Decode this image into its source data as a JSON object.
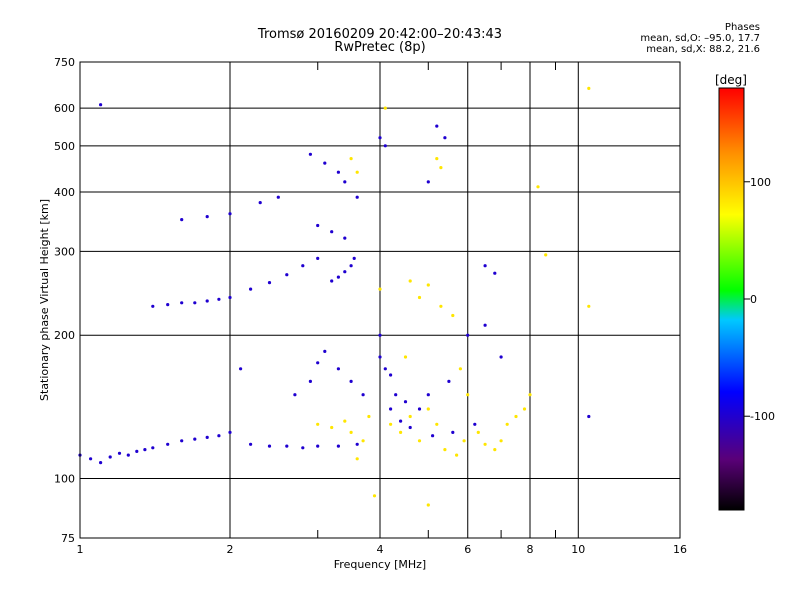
{
  "header": {
    "title_line1": "Tromsø 20160209 20:42:00–20:43:43",
    "title_line2": "RwPretec (8p)"
  },
  "stats": {
    "heading": "Phases",
    "line1": "mean, sd,O: –95.0, 17.7",
    "line2": "mean, sd,X:  88.2, 21.6"
  },
  "chart_data": {
    "type": "scatter",
    "xlabel": "Frequency [MHz]",
    "ylabel": "Stationary phase Virtual Height [km]",
    "x_scale": "log",
    "y_scale": "log",
    "xlim": [
      1,
      16
    ],
    "ylim": [
      75,
      750
    ],
    "x_ticks": [
      1,
      2,
      4,
      6,
      8,
      10,
      16
    ],
    "x_minor_ticks": [
      3,
      5,
      7,
      9
    ],
    "y_ticks": [
      75,
      100,
      200,
      300,
      400,
      500,
      600,
      750
    ],
    "grid": true,
    "colorbar": {
      "label": "[deg]",
      "range": [
        -180,
        180
      ],
      "ticks": [
        100,
        0,
        -100
      ],
      "colormap": [
        "#000000",
        "#5a0078",
        "#0000ff",
        "#00c8ff",
        "#00ff00",
        "#ffff00",
        "#ff8c00",
        "#ff0000"
      ]
    },
    "series": [
      {
        "name": "O",
        "phase_mean_deg": -95,
        "points": [
          [
            1.0,
            112
          ],
          [
            1.05,
            110
          ],
          [
            1.1,
            108
          ],
          [
            1.15,
            111
          ],
          [
            1.2,
            113
          ],
          [
            1.25,
            112
          ],
          [
            1.3,
            114
          ],
          [
            1.35,
            115
          ],
          [
            1.4,
            116
          ],
          [
            1.5,
            118
          ],
          [
            1.6,
            120
          ],
          [
            1.7,
            121
          ],
          [
            1.8,
            122
          ],
          [
            1.9,
            123
          ],
          [
            2.0,
            125
          ],
          [
            2.2,
            118
          ],
          [
            2.4,
            117
          ],
          [
            2.6,
            117
          ],
          [
            2.8,
            116
          ],
          [
            3.0,
            117
          ],
          [
            3.3,
            117
          ],
          [
            3.6,
            118
          ],
          [
            1.4,
            230
          ],
          [
            1.5,
            232
          ],
          [
            1.6,
            234
          ],
          [
            1.7,
            234
          ],
          [
            1.8,
            236
          ],
          [
            1.9,
            238
          ],
          [
            2.0,
            240
          ],
          [
            2.2,
            250
          ],
          [
            2.4,
            258
          ],
          [
            2.6,
            268
          ],
          [
            2.8,
            280
          ],
          [
            3.0,
            290
          ],
          [
            1.6,
            350
          ],
          [
            1.8,
            355
          ],
          [
            2.0,
            360
          ],
          [
            2.3,
            380
          ],
          [
            2.5,
            390
          ],
          [
            3.2,
            260
          ],
          [
            3.3,
            265
          ],
          [
            3.4,
            272
          ],
          [
            3.5,
            280
          ],
          [
            3.55,
            290
          ],
          [
            2.9,
            480
          ],
          [
            3.1,
            460
          ],
          [
            3.3,
            440
          ],
          [
            3.4,
            420
          ],
          [
            3.6,
            390
          ],
          [
            3.0,
            340
          ],
          [
            3.2,
            330
          ],
          [
            3.4,
            320
          ],
          [
            2.7,
            150
          ],
          [
            2.9,
            160
          ],
          [
            3.0,
            175
          ],
          [
            3.1,
            185
          ],
          [
            3.3,
            170
          ],
          [
            3.5,
            160
          ],
          [
            3.7,
            150
          ],
          [
            4.0,
            200
          ],
          [
            4.0,
            180
          ],
          [
            4.1,
            170
          ],
          [
            4.2,
            165
          ],
          [
            4.3,
            150
          ],
          [
            4.5,
            145
          ],
          [
            4.8,
            140
          ],
          [
            5.0,
            150
          ],
          [
            5.5,
            160
          ],
          [
            4.0,
            520
          ],
          [
            4.1,
            500
          ],
          [
            5.2,
            550
          ],
          [
            5.4,
            520
          ],
          [
            5.0,
            420
          ],
          [
            6.0,
            200
          ],
          [
            6.5,
            210
          ],
          [
            7.0,
            180
          ],
          [
            4.2,
            140
          ],
          [
            4.4,
            132
          ],
          [
            4.6,
            128
          ],
          [
            5.1,
            123
          ],
          [
            5.6,
            125
          ],
          [
            6.2,
            130
          ],
          [
            6.5,
            280
          ],
          [
            6.8,
            270
          ],
          [
            1.1,
            610
          ],
          [
            10.5,
            135
          ],
          [
            2.1,
            170
          ]
        ]
      },
      {
        "name": "X",
        "phase_mean_deg": 88.2,
        "points": [
          [
            3.0,
            130
          ],
          [
            3.2,
            128
          ],
          [
            3.4,
            132
          ],
          [
            3.5,
            125
          ],
          [
            3.7,
            120
          ],
          [
            3.8,
            135
          ],
          [
            4.2,
            130
          ],
          [
            4.4,
            125
          ],
          [
            4.6,
            135
          ],
          [
            4.8,
            120
          ],
          [
            5.0,
            140
          ],
          [
            5.2,
            130
          ],
          [
            5.4,
            115
          ],
          [
            5.7,
            112
          ],
          [
            5.9,
            120
          ],
          [
            6.0,
            150
          ],
          [
            6.3,
            125
          ],
          [
            6.5,
            118
          ],
          [
            6.8,
            115
          ],
          [
            7.0,
            120
          ],
          [
            7.2,
            130
          ],
          [
            7.5,
            135
          ],
          [
            7.8,
            140
          ],
          [
            8.0,
            150
          ],
          [
            3.5,
            470
          ],
          [
            3.6,
            440
          ],
          [
            4.6,
            260
          ],
          [
            4.8,
            240
          ],
          [
            5.0,
            255
          ],
          [
            5.3,
            230
          ],
          [
            5.6,
            220
          ],
          [
            4.0,
            250
          ],
          [
            5.2,
            470
          ],
          [
            5.3,
            450
          ],
          [
            4.1,
            600
          ],
          [
            3.6,
            110
          ],
          [
            4.5,
            180
          ],
          [
            5.8,
            170
          ],
          [
            8.3,
            410
          ],
          [
            8.6,
            295
          ],
          [
            10.5,
            660
          ],
          [
            5.0,
            88
          ],
          [
            3.9,
            92
          ],
          [
            10.5,
            230
          ]
        ]
      }
    ]
  }
}
